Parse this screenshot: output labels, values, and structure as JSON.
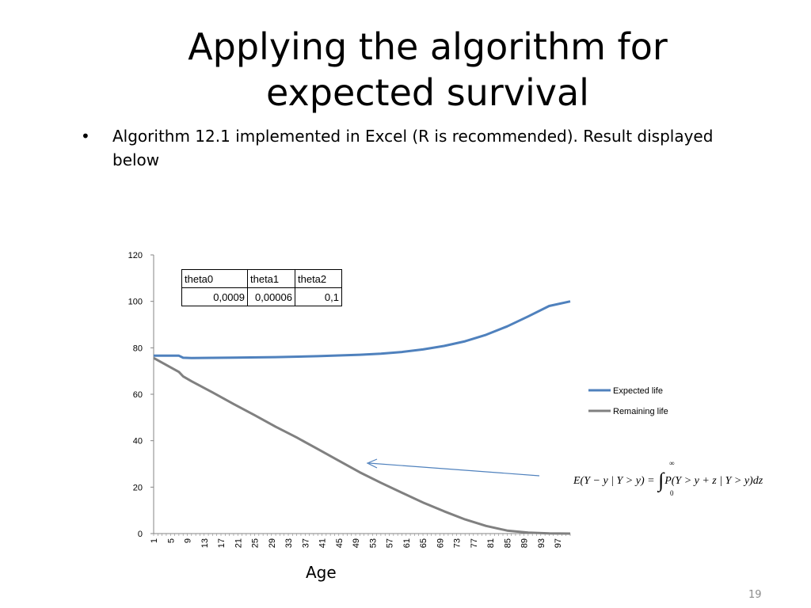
{
  "slide": {
    "title_line1": "Applying the algorithm for",
    "title_line2": "expected survival",
    "bullet_symbol": "•",
    "bullet_text": "Algorithm 12.1 implemented in Excel (R is recommended). Result displayed below",
    "page_number": "19"
  },
  "param_table": {
    "headers": [
      "theta0",
      "theta1",
      "theta2"
    ],
    "values": [
      "0,0009",
      "0,00006",
      "0,1"
    ]
  },
  "formula": {
    "lhs": "E(Y − y | Y > y) = ",
    "integral": "∫",
    "upper": "∞",
    "lower": "0",
    "rhs": "P(Y > y + z | Y > y)dz"
  },
  "chart_data": {
    "type": "line",
    "xlabel": "Age",
    "ylabel": "",
    "ylim": [
      0,
      120
    ],
    "yticks": [
      0,
      20,
      40,
      60,
      80,
      100,
      120
    ],
    "x_range": [
      1,
      100
    ],
    "xtick_labels": [
      "1",
      "5",
      "9",
      "13",
      "17",
      "21",
      "25",
      "29",
      "33",
      "37",
      "41",
      "45",
      "49",
      "53",
      "57",
      "61",
      "65",
      "69",
      "73",
      "77",
      "81",
      "85",
      "89",
      "93",
      "97"
    ],
    "legend_position": "right",
    "grid": false,
    "series": [
      {
        "name": "Expected life",
        "color": "#4f81bd",
        "points": [
          [
            1,
            76.6
          ],
          [
            7,
            76.6
          ],
          [
            8,
            75.7
          ],
          [
            10,
            75.6
          ],
          [
            20,
            75.8
          ],
          [
            30,
            76.0
          ],
          [
            40,
            76.4
          ],
          [
            50,
            77.0
          ],
          [
            55,
            77.5
          ],
          [
            60,
            78.2
          ],
          [
            65,
            79.3
          ],
          [
            70,
            80.8
          ],
          [
            75,
            82.8
          ],
          [
            80,
            85.6
          ],
          [
            85,
            89.2
          ],
          [
            90,
            93.5
          ],
          [
            95,
            98.0
          ],
          [
            100,
            100
          ]
        ]
      },
      {
        "name": "Remaining life",
        "color": "#808080",
        "points": [
          [
            1,
            75.6
          ],
          [
            7,
            69.6
          ],
          [
            8,
            67.7
          ],
          [
            10,
            65.6
          ],
          [
            15,
            60.8
          ],
          [
            20,
            55.8
          ],
          [
            25,
            51.0
          ],
          [
            30,
            46.0
          ],
          [
            35,
            41.4
          ],
          [
            40,
            36.4
          ],
          [
            45,
            31.4
          ],
          [
            50,
            26.4
          ],
          [
            55,
            21.9
          ],
          [
            60,
            17.6
          ],
          [
            65,
            13.4
          ],
          [
            70,
            9.6
          ],
          [
            75,
            6.1
          ],
          [
            80,
            3.3
          ],
          [
            85,
            1.3
          ],
          [
            90,
            0.4
          ],
          [
            95,
            0.1
          ],
          [
            100,
            0.0
          ]
        ]
      }
    ],
    "annotation_arrow": true
  }
}
